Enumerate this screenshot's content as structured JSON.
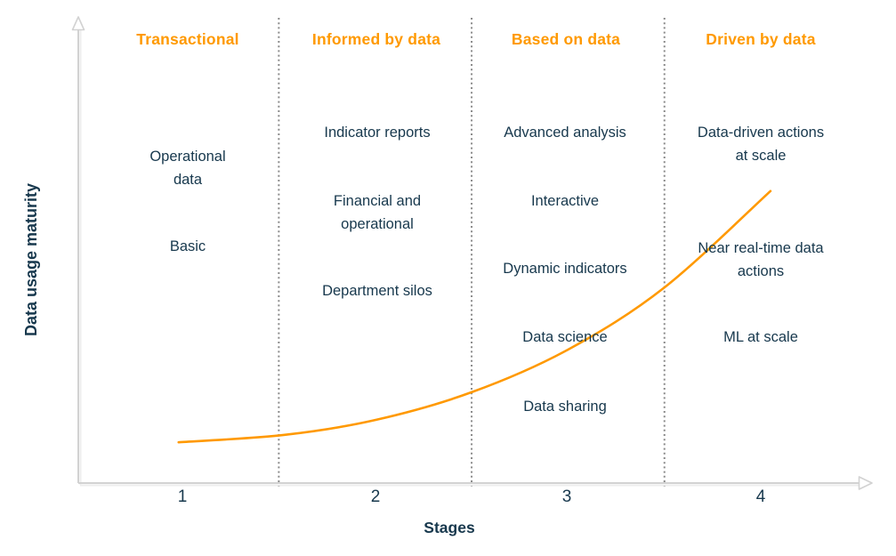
{
  "colors": {
    "accent_orange": "#ff9900",
    "text_navy": "#17384d",
    "axis_gray": "#d2d2d2",
    "divider_gray": "#8a8a8a"
  },
  "axes": {
    "y_label": "Data usage maturity",
    "x_label": "Stages",
    "x_ticks": [
      "1",
      "2",
      "3",
      "4"
    ]
  },
  "stages": [
    {
      "header": "Transactional",
      "items": [
        "Operational\ndata",
        "Basic"
      ]
    },
    {
      "header": "Informed by data",
      "items": [
        "Indicator reports",
        "Financial and\noperational",
        "Department silos"
      ]
    },
    {
      "header": "Based on data",
      "items": [
        "Advanced analysis",
        "Interactive",
        "Dynamic indicators",
        "Data science",
        "Data sharing"
      ]
    },
    {
      "header": "Driven by data",
      "items": [
        "Data-driven actions\nat scale",
        "Near real-time data\nactions",
        "ML at scale"
      ]
    }
  ],
  "chart_data": {
    "type": "line",
    "title": "",
    "xlabel": "Stages",
    "ylabel": "Data usage maturity",
    "x_ticks": [
      1,
      2,
      3,
      4
    ],
    "x_tick_labels": [
      "1",
      "2",
      "3",
      "4"
    ],
    "x_range": [
      0.5,
      4.5
    ],
    "y_range": [
      0,
      1
    ],
    "grid": false,
    "legend": "none",
    "dividers_x": [
      1.5,
      2.5,
      3.5
    ],
    "divider_style": "dotted-vertical",
    "stage_labels": [
      "Transactional",
      "Informed by data",
      "Based on data",
      "Driven by data"
    ],
    "series": [
      {
        "name": "Data usage maturity curve",
        "color": "#ff9900",
        "shape": "exponential-growth",
        "x": [
          0.98,
          1.53,
          2.0,
          2.5,
          3.0,
          3.5,
          4.05
        ],
        "y": [
          0.088,
          0.104,
          0.136,
          0.196,
          0.288,
          0.422,
          0.63
        ]
      }
    ]
  }
}
